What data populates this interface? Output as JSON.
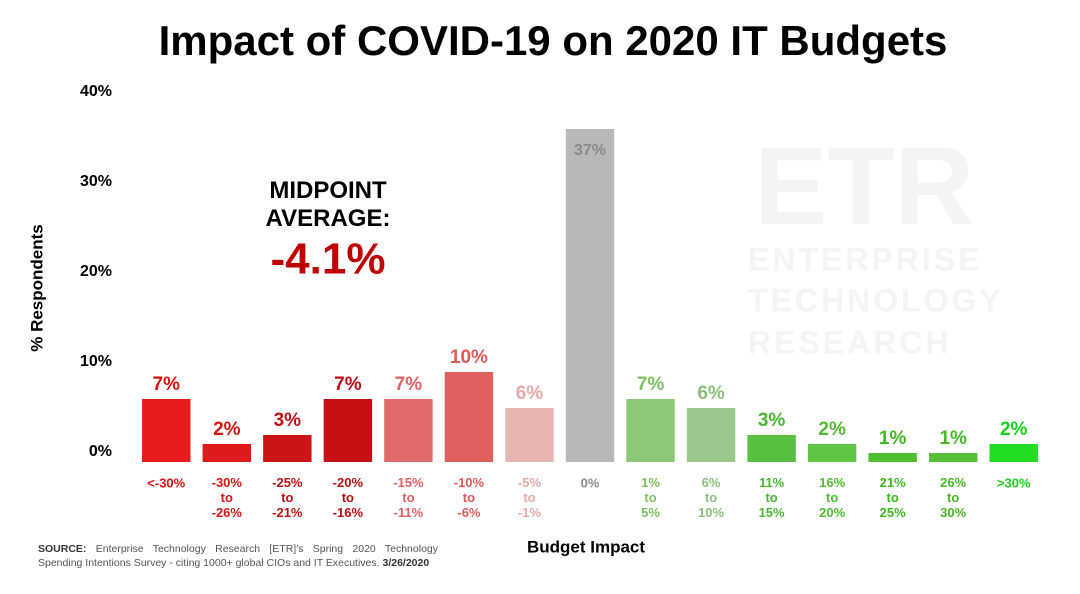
{
  "chart_data": {
    "type": "bar",
    "title": "Impact of COVID-19 on 2020 IT Budgets",
    "y_label": "% Respondents",
    "x_label": "Budget Impact",
    "categories": [
      "<-30%",
      "-30% to -26%",
      "-25% to -21%",
      "-20% to -16%",
      "-15% to -11%",
      "-10% to -6%",
      "-5% to -1%",
      "0%",
      "1% to 5%",
      "6% to 10%",
      "11% to 15%",
      "16% to 20%",
      "21% to 25%",
      "26% to 30%",
      ">30%"
    ],
    "values": [
      7,
      2,
      3,
      7,
      7,
      10,
      6,
      37,
      7,
      6,
      3,
      2,
      1,
      1,
      2
    ],
    "value_labels": [
      "7%",
      "2%",
      "3%",
      "7%",
      "7%",
      "10%",
      "6%",
      "37%",
      "7%",
      "6%",
      "3%",
      "2%",
      "1%",
      "1%",
      "2%"
    ],
    "colors": [
      "#e81a1c",
      "#df1a1c",
      "#cc1417",
      "#c70f14",
      "#e06a6a",
      "#e05f5f",
      "#e8b5b0",
      "#b8b8b8",
      "#8cc878",
      "#9ac88c",
      "#58c040",
      "#60c444",
      "#50c030",
      "#58c038",
      "#22dd22"
    ],
    "label_colors": [
      "#e01010",
      "#d41414",
      "#c01014",
      "#c00c10",
      "#e06060",
      "#e05a5a",
      "#e8aaa6",
      "#8a8a8a",
      "#7cc060",
      "#8cc07c",
      "#48b830",
      "#50bc34",
      "#40b820",
      "#48b828",
      "#18d018"
    ],
    "ylim": [
      0,
      40
    ],
    "yticks": [
      {
        "value": 0,
        "label": "0%"
      },
      {
        "value": 10,
        "label": "10%"
      },
      {
        "value": 20,
        "label": "20%"
      },
      {
        "value": 30,
        "label": "30%"
      },
      {
        "value": 40,
        "label": "40%"
      }
    ],
    "grid": false,
    "annotation": {
      "heading": "MIDPOINT AVERAGE:",
      "value": "-4.1%"
    },
    "watermark": {
      "logo": "ETR",
      "lines": [
        "ENTERPRISE",
        "TECHNOLOGY",
        "RESEARCH"
      ]
    },
    "source": {
      "label": "SOURCE:",
      "text": "Enterprise Technology Research [ETR]'s Spring 2020 Technology Spending Intentions Survey - citing 1000+ global CIOs and IT Executives.",
      "date": "3/26/2020"
    }
  }
}
